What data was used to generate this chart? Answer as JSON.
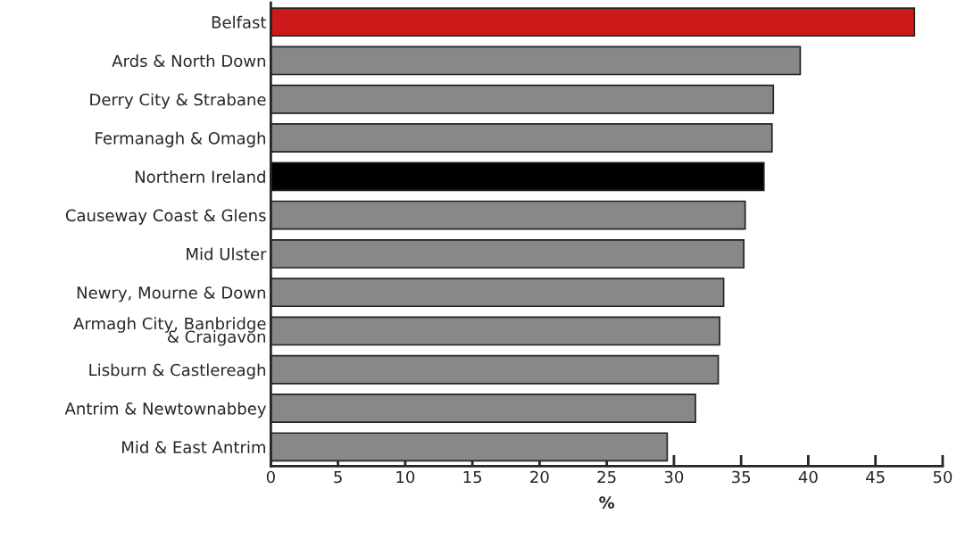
{
  "chart_data": {
    "type": "bar",
    "orientation": "horizontal",
    "xlabel": "%",
    "categories": [
      "Belfast",
      "Ards & North Down",
      "Derry City & Strabane",
      "Fermanagh & Omagh",
      "Northern Ireland",
      "Causeway Coast & Glens",
      "Mid Ulster",
      "Newry, Mourne & Down",
      "Armagh City, Banbridge\n& Craigavon",
      "Lisburn & Castlereagh",
      "Antrim & Newtownabbey",
      "Mid & East Antrim"
    ],
    "values": [
      47.9,
      39.4,
      37.4,
      37.3,
      36.7,
      35.3,
      35.2,
      33.7,
      33.4,
      33.3,
      31.6,
      29.5
    ],
    "colors": [
      "#cc1a1a",
      "#888888",
      "#888888",
      "#888888",
      "#000000",
      "#888888",
      "#888888",
      "#888888",
      "#888888",
      "#888888",
      "#888888",
      "#888888"
    ],
    "xlim": [
      0,
      50
    ],
    "xticks": [
      0,
      5,
      10,
      15,
      20,
      25,
      30,
      35,
      40,
      45,
      50
    ],
    "grid": false,
    "legend": false
  }
}
